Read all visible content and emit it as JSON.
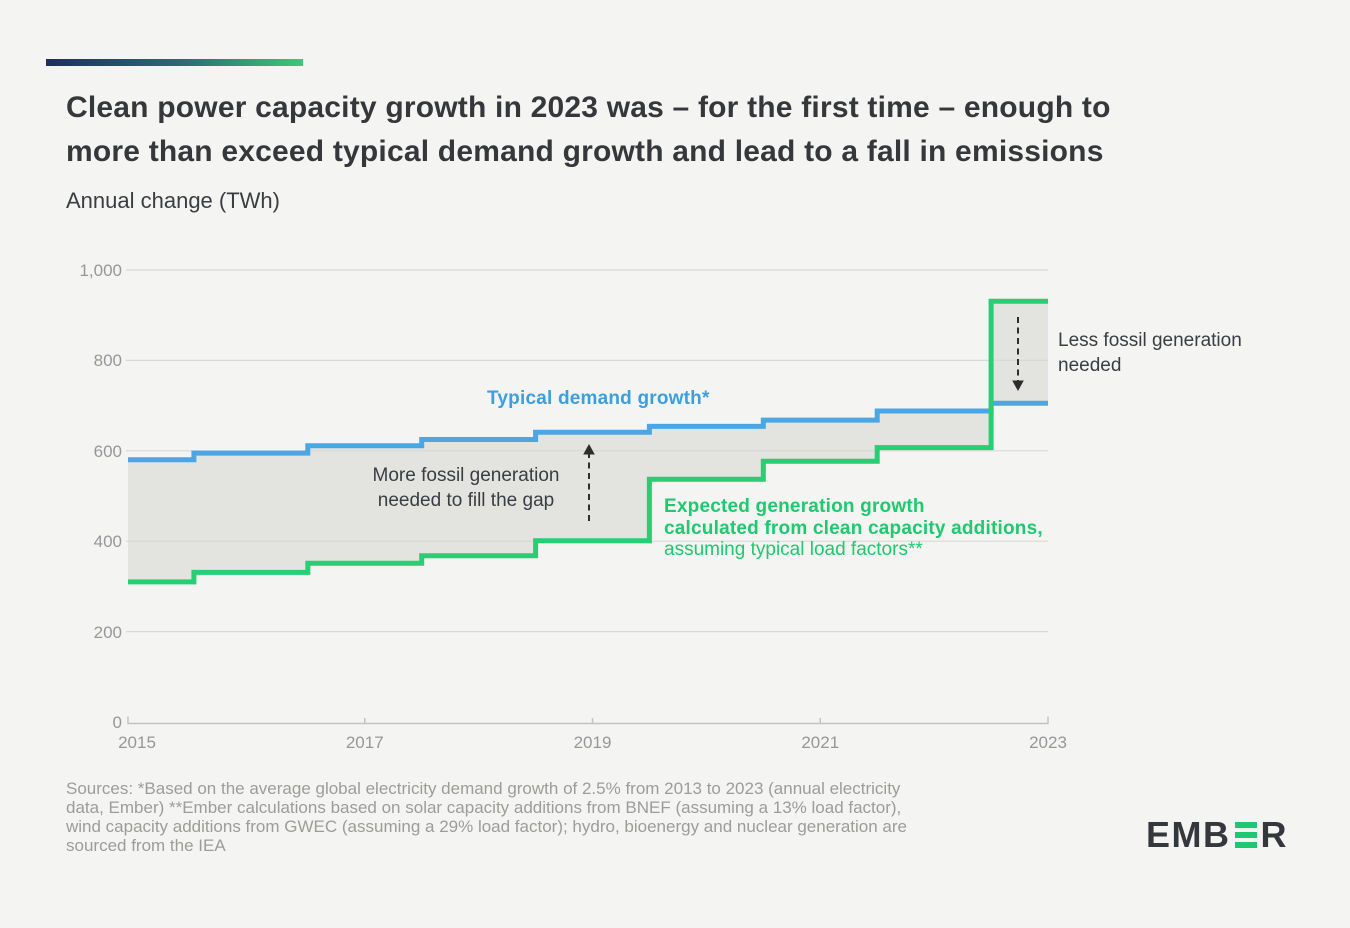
{
  "header": {
    "title": "Clean power capacity growth in 2023 was – for the first time – enough to\nmore than exceed typical demand growth and lead to a fall in emissions",
    "subtitle": "Annual change (TWh)"
  },
  "chart_data": {
    "type": "line",
    "step_style": "middle",
    "title": "Clean power capacity growth vs typical demand growth",
    "xlabel": "",
    "ylabel": "Annual change (TWh)",
    "x": [
      2015,
      2016,
      2017,
      2018,
      2019,
      2020,
      2021,
      2022,
      2023
    ],
    "series": [
      {
        "name": "Typical demand growth*",
        "color": "#4aa6e4",
        "values": [
          580,
          595,
          611,
          625,
          641,
          654,
          668,
          688,
          705
        ]
      },
      {
        "name": "Expected generation growth calculated from clean capacity additions, assuming typical load factors**",
        "color": "#27ce72",
        "values": [
          310,
          331,
          351,
          368,
          401,
          537,
          577,
          607,
          931
        ]
      }
    ],
    "ylim": [
      0,
      1000
    ],
    "yticks": [
      0,
      200,
      400,
      600,
      800,
      1000
    ],
    "ytick_labels": [
      "0",
      "200",
      "400",
      "600",
      "800",
      "1,000"
    ],
    "xticks": [
      2015,
      2017,
      2019,
      2021,
      2023
    ],
    "xtick_labels": [
      "2015",
      "2017",
      "2019",
      "2021",
      "2023"
    ],
    "grid": true,
    "legend_position": "inline-annotations",
    "gap_fill_color": "#e3e3e0",
    "gap_meaning_below": "More fossil generation needed to fill the gap",
    "gap_meaning_above": "Less fossil generation needed"
  },
  "annotations": {
    "demand_label": "Typical demand growth*",
    "more_fossil": "More fossil generation\nneeded to fill the gap",
    "expected_bold": "Expected generation growth\ncalculated from clean capacity additions,",
    "expected_regular": "assuming typical load factors**",
    "less_fossil": "Less fossil generation\nneeded"
  },
  "footer": {
    "sources": "Sources: *Based on the average global electricity demand growth of 2.5% from 2013 to 2023 (annual electricity\ndata, Ember) **Ember calculations based on solar capacity additions from BNEF (assuming a 13% load factor),\nwind capacity additions from GWEC (assuming a 29% load factor); hydro, bioenergy and nuclear generation are\nsourced from the IEA",
    "logo_prefix": "EMB",
    "logo_suffix": "R"
  },
  "colors": {
    "background": "#f4f4f2",
    "demand_line": "#4aa6e4",
    "clean_line": "#27ce72",
    "gap_fill": "#e3e3e0",
    "gridline": "#d8d8d5",
    "axis": "#c3c3c0",
    "title_text": "#35373b",
    "annotation_text": "#3a3d42",
    "tick_text": "#97979a",
    "source_text": "#9c9c99",
    "logo_dark": "#34373c",
    "logo_green": "#1ec873",
    "arrow": "#2d2d2d"
  }
}
